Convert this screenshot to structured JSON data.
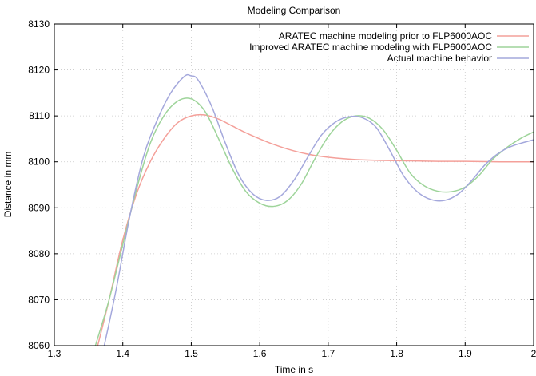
{
  "chart_data": {
    "type": "line",
    "title": "Modeling Comparison",
    "xlabel": "Time in s",
    "ylabel": "Distance in mm",
    "xlim": [
      1.3,
      2.0
    ],
    "ylim": [
      8060,
      8130
    ],
    "xticks": [
      1.3,
      1.4,
      1.5,
      1.6,
      1.7,
      1.8,
      1.9,
      2.0
    ],
    "xtick_labels": [
      "1.3",
      "1.4",
      "1.5",
      "1.6",
      "1.7",
      "1.8",
      "1.9",
      "2"
    ],
    "yticks": [
      8060,
      8070,
      8080,
      8090,
      8100,
      8110,
      8120,
      8130
    ],
    "ytick_labels": [
      "8060",
      "8070",
      "8080",
      "8090",
      "8100",
      "8110",
      "8120",
      "8130"
    ],
    "grid": true,
    "legend_position": "top-right",
    "series": [
      {
        "name": "ARATEC machine modeling prior to FLP6000AOC",
        "color": "#f4a09a",
        "x": [
          1.36,
          1.38,
          1.4,
          1.42,
          1.44,
          1.46,
          1.48,
          1.5,
          1.52,
          1.54,
          1.56,
          1.58,
          1.6,
          1.62,
          1.64,
          1.66,
          1.68,
          1.7,
          1.74,
          1.78,
          1.82,
          1.86,
          1.9,
          1.95,
          2.0
        ],
        "y": [
          8058,
          8070,
          8083,
          8093,
          8100,
          8105,
          8108.5,
          8110,
          8110.2,
          8109.3,
          8107.8,
          8106.3,
          8105,
          8103.8,
          8102.8,
          8102,
          8101.4,
          8101,
          8100.5,
          8100.3,
          8100.2,
          8100.1,
          8100.1,
          8100,
          8100
        ]
      },
      {
        "name": "Improved ARATEC machine modeling with FLP6000AOC",
        "color": "#9ed49a",
        "x": [
          1.36,
          1.38,
          1.4,
          1.42,
          1.44,
          1.46,
          1.48,
          1.5,
          1.52,
          1.54,
          1.56,
          1.58,
          1.6,
          1.62,
          1.64,
          1.66,
          1.68,
          1.7,
          1.72,
          1.74,
          1.76,
          1.78,
          1.8,
          1.82,
          1.84,
          1.86,
          1.88,
          1.9,
          1.92,
          1.94,
          1.96,
          1.98,
          2.0
        ],
        "y": [
          8060,
          8070,
          8082,
          8094,
          8104,
          8110,
          8113.2,
          8113.7,
          8111,
          8105,
          8098.5,
          8093.5,
          8091,
          8090.3,
          8091.5,
          8095,
          8100.5,
          8105.5,
          8108.7,
          8110,
          8109.5,
          8107,
          8102.5,
          8097.5,
          8094.8,
          8093.6,
          8093.5,
          8094.5,
          8097,
          8100.5,
          8103,
          8105,
          8106.5
        ]
      },
      {
        "name": "Actual machine behavior",
        "color": "#a4a8dc",
        "x": [
          1.37,
          1.39,
          1.41,
          1.43,
          1.45,
          1.47,
          1.49,
          1.5,
          1.51,
          1.53,
          1.55,
          1.57,
          1.59,
          1.61,
          1.63,
          1.65,
          1.67,
          1.69,
          1.71,
          1.73,
          1.75,
          1.77,
          1.79,
          1.81,
          1.83,
          1.85,
          1.87,
          1.89,
          1.91,
          1.93,
          1.95,
          1.97,
          2.0
        ],
        "y": [
          8058,
          8072,
          8088,
          8101,
          8109,
          8115,
          8118.6,
          8118.7,
          8117.8,
          8112,
          8104,
          8097,
          8093,
          8091.6,
          8092.5,
          8096,
          8101,
          8105.8,
          8108.6,
          8109.8,
          8109.6,
          8107.5,
          8102.5,
          8097,
          8093.5,
          8091.8,
          8091.6,
          8093,
          8096,
          8099.5,
          8102,
          8103.5,
          8104.8
        ]
      }
    ]
  }
}
